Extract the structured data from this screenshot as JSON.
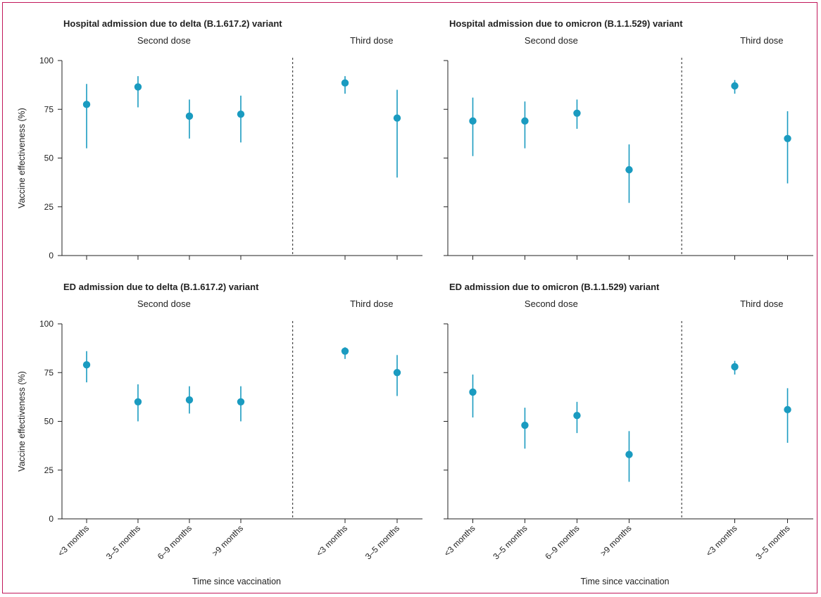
{
  "colors": {
    "marker": "#1a9bc0",
    "frame": "#c2185b",
    "axis": "#222222"
  },
  "chart_data": [
    {
      "type": "scatter",
      "title": "Hospital admission due to delta (B.1.617.2) variant",
      "groups": [
        "Second dose",
        "Third dose"
      ],
      "ylabel": "Vaccine effectiveness (%)",
      "ylim": [
        0,
        100
      ],
      "yticks": [
        0,
        25,
        50,
        75,
        100
      ],
      "show_y_tick_labels": true,
      "show_x_tick_labels": false,
      "categories": [
        "<3 months",
        "3–5 months",
        "6–9 months",
        ">9 months",
        "<3 months",
        "3–5 months"
      ],
      "category_group": [
        0,
        0,
        0,
        0,
        1,
        1
      ],
      "values": [
        77.5,
        86.5,
        71.5,
        72.5,
        88.5,
        70.5
      ],
      "ci_low": [
        55,
        76,
        60,
        58,
        83,
        40
      ],
      "ci_high": [
        88,
        92,
        80,
        82,
        92,
        85
      ]
    },
    {
      "type": "scatter",
      "title": "Hospital admission due to omicron (B.1.1.529) variant",
      "groups": [
        "Second dose",
        "Third dose"
      ],
      "ylabel": "",
      "ylim": [
        0,
        100
      ],
      "yticks": [
        0,
        25,
        50,
        75,
        100
      ],
      "show_y_tick_labels": false,
      "show_x_tick_labels": false,
      "categories": [
        "<3 months",
        "3–5 months",
        "6–9 months",
        ">9 months",
        "<3 months",
        "3–5 months"
      ],
      "category_group": [
        0,
        0,
        0,
        0,
        1,
        1
      ],
      "values": [
        69,
        69,
        73,
        44,
        87,
        60
      ],
      "ci_low": [
        51,
        55,
        65,
        27,
        83,
        37
      ],
      "ci_high": [
        81,
        79,
        80,
        57,
        90,
        74
      ]
    },
    {
      "type": "scatter",
      "title": "ED admission due to delta (B.1.617.2) variant",
      "groups": [
        "Second dose",
        "Third dose"
      ],
      "ylabel": "Vaccine effectiveness (%)",
      "ylim": [
        0,
        100
      ],
      "yticks": [
        0,
        25,
        50,
        75,
        100
      ],
      "show_y_tick_labels": true,
      "show_x_tick_labels": true,
      "xlabel": "Time since vaccination",
      "categories": [
        "<3 months",
        "3–5 months",
        "6–9 months",
        ">9 months",
        "<3 months",
        "3–5 months"
      ],
      "category_group": [
        0,
        0,
        0,
        0,
        1,
        1
      ],
      "values": [
        79,
        60,
        61,
        60,
        86,
        75
      ],
      "ci_low": [
        70,
        50,
        54,
        50,
        82,
        63
      ],
      "ci_high": [
        86,
        69,
        68,
        68,
        88,
        84
      ]
    },
    {
      "type": "scatter",
      "title": "ED admission due to omicron (B.1.1.529) variant",
      "groups": [
        "Second dose",
        "Third dose"
      ],
      "ylabel": "",
      "ylim": [
        0,
        100
      ],
      "yticks": [
        0,
        25,
        50,
        75,
        100
      ],
      "show_y_tick_labels": false,
      "show_x_tick_labels": true,
      "xlabel": "Time since vaccination",
      "categories": [
        "<3 months",
        "3–5 months",
        "6–9 months",
        ">9 months",
        "<3 months",
        "3–5 months"
      ],
      "category_group": [
        0,
        0,
        0,
        0,
        1,
        1
      ],
      "values": [
        65,
        48,
        53,
        33,
        78,
        56
      ],
      "ci_low": [
        52,
        36,
        44,
        19,
        74,
        39
      ],
      "ci_high": [
        74,
        57,
        60,
        45,
        81,
        67
      ]
    }
  ]
}
